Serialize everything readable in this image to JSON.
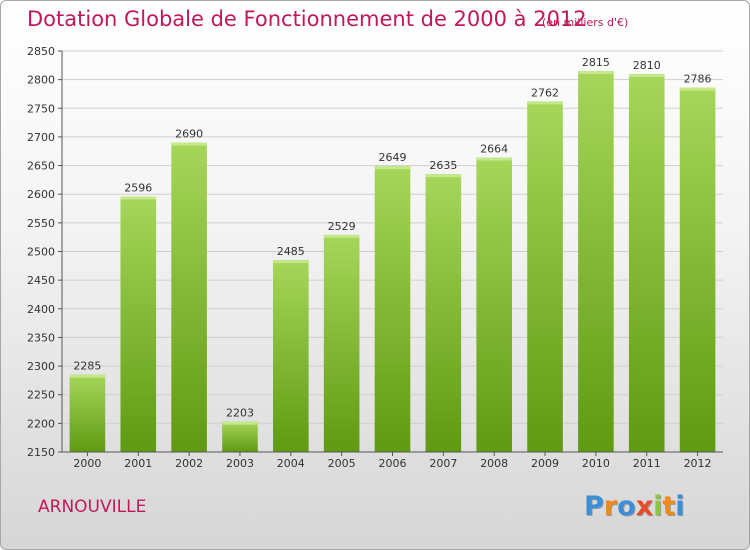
{
  "title": "Dotation Globale de Fonctionnement de 2000 à 2012",
  "unit": "(en milliers d'€)",
  "commune": "ARNOUVILLE",
  "logo": {
    "letters": [
      "P",
      "r",
      "o",
      "x",
      "i",
      "t",
      "i"
    ],
    "colors": [
      "#3a8fd6",
      "#f08a1c",
      "#3a8fd6",
      "#e84a2a",
      "#8dc63f",
      "#f08a1c",
      "#3a8fd6"
    ]
  },
  "colors": {
    "title": "#c2185b",
    "bar_light": "#a6d65a",
    "bar_dark": "#5f9a12",
    "grid": "#cfcfcf"
  },
  "chart_data": {
    "type": "bar",
    "categories": [
      "2000",
      "2001",
      "2002",
      "2003",
      "2004",
      "2005",
      "2006",
      "2007",
      "2008",
      "2009",
      "2010",
      "2011",
      "2012"
    ],
    "values": [
      2285,
      2596,
      2690,
      2203,
      2485,
      2529,
      2649,
      2635,
      2664,
      2762,
      2815,
      2810,
      2786
    ],
    "ylim": [
      2150,
      2850
    ],
    "yticks": [
      2150,
      2200,
      2250,
      2300,
      2350,
      2400,
      2450,
      2500,
      2550,
      2600,
      2650,
      2700,
      2750,
      2800,
      2850
    ],
    "grid": true,
    "data_labels": true
  }
}
